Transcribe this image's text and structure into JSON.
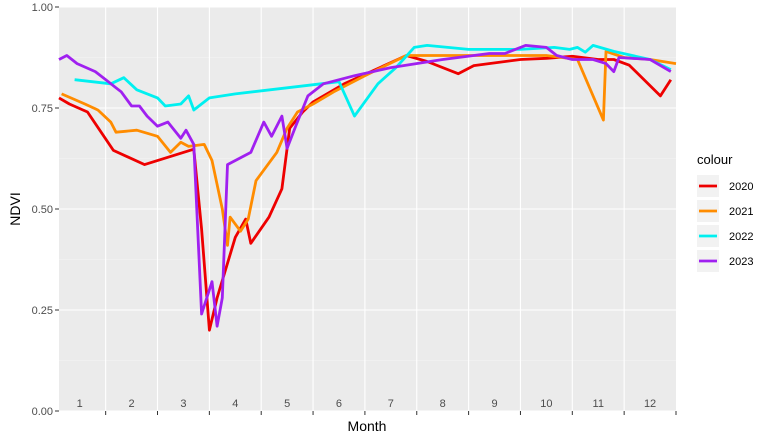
{
  "chart_data": {
    "type": "line",
    "xlabel": "Month",
    "ylabel": "NDVI",
    "ylim": [
      0,
      1
    ],
    "xlim": [
      0.6,
      12.5
    ],
    "yticks": [
      0.0,
      0.25,
      0.5,
      0.75,
      1.0
    ],
    "ytick_labels": [
      "0.00",
      "0.25",
      "0.50",
      "0.75",
      "1.00"
    ],
    "months": [
      "1",
      "2",
      "3",
      "4",
      "5",
      "6",
      "7",
      "8",
      "9",
      "10",
      "11",
      "12"
    ],
    "grid": true,
    "legend_title": "colour",
    "legend_position": "right",
    "series": [
      {
        "name": "2020",
        "color": "#ee0000",
        "points": [
          [
            0.6,
            0.775
          ],
          [
            0.8,
            0.76
          ],
          [
            1.15,
            0.74
          ],
          [
            1.65,
            0.645
          ],
          [
            2.25,
            0.61
          ],
          [
            3.2,
            0.648
          ],
          [
            3.35,
            0.45
          ],
          [
            3.5,
            0.2
          ],
          [
            3.65,
            0.28
          ],
          [
            4.0,
            0.43
          ],
          [
            4.2,
            0.475
          ],
          [
            4.3,
            0.415
          ],
          [
            4.65,
            0.48
          ],
          [
            4.9,
            0.55
          ],
          [
            5.05,
            0.7
          ],
          [
            5.3,
            0.74
          ],
          [
            5.5,
            0.765
          ],
          [
            6.1,
            0.81
          ],
          [
            7.3,
            0.88
          ],
          [
            7.7,
            0.865
          ],
          [
            8.3,
            0.835
          ],
          [
            8.6,
            0.855
          ],
          [
            9.5,
            0.87
          ],
          [
            10.0,
            0.873
          ],
          [
            10.5,
            0.878
          ],
          [
            11.0,
            0.87
          ],
          [
            11.3,
            0.87
          ],
          [
            11.6,
            0.856
          ],
          [
            12.2,
            0.78
          ],
          [
            12.4,
            0.82
          ]
        ]
      },
      {
        "name": "2021",
        "color": "#ff8c00",
        "points": [
          [
            0.65,
            0.785
          ],
          [
            1.1,
            0.76
          ],
          [
            1.35,
            0.745
          ],
          [
            1.6,
            0.715
          ],
          [
            1.7,
            0.69
          ],
          [
            2.1,
            0.695
          ],
          [
            2.5,
            0.68
          ],
          [
            2.75,
            0.64
          ],
          [
            2.95,
            0.665
          ],
          [
            3.1,
            0.655
          ],
          [
            3.4,
            0.66
          ],
          [
            3.55,
            0.62
          ],
          [
            3.75,
            0.5
          ],
          [
            3.85,
            0.41
          ],
          [
            3.9,
            0.48
          ],
          [
            4.1,
            0.445
          ],
          [
            4.25,
            0.475
          ],
          [
            4.4,
            0.57
          ],
          [
            4.8,
            0.64
          ],
          [
            5.0,
            0.7
          ],
          [
            5.2,
            0.74
          ],
          [
            5.5,
            0.76
          ],
          [
            5.9,
            0.79
          ],
          [
            6.5,
            0.83
          ],
          [
            7.3,
            0.88
          ],
          [
            8.2,
            0.88
          ],
          [
            9.0,
            0.88
          ],
          [
            10.0,
            0.88
          ],
          [
            10.6,
            0.87
          ],
          [
            11.1,
            0.72
          ],
          [
            11.15,
            0.89
          ],
          [
            11.5,
            0.875
          ],
          [
            12.0,
            0.87
          ],
          [
            12.5,
            0.86
          ]
        ]
      },
      {
        "name": "2022",
        "color": "#00f0f0",
        "points": [
          [
            0.9,
            0.82
          ],
          [
            1.6,
            0.81
          ],
          [
            1.85,
            0.825
          ],
          [
            2.1,
            0.795
          ],
          [
            2.5,
            0.775
          ],
          [
            2.65,
            0.755
          ],
          [
            2.95,
            0.76
          ],
          [
            3.1,
            0.78
          ],
          [
            3.2,
            0.745
          ],
          [
            3.5,
            0.775
          ],
          [
            4.0,
            0.785
          ],
          [
            5.0,
            0.8
          ],
          [
            6.0,
            0.815
          ],
          [
            6.3,
            0.73
          ],
          [
            6.75,
            0.81
          ],
          [
            7.1,
            0.85
          ],
          [
            7.45,
            0.9
          ],
          [
            7.7,
            0.905
          ],
          [
            8.5,
            0.895
          ],
          [
            9.5,
            0.895
          ],
          [
            10.15,
            0.9
          ],
          [
            10.45,
            0.895
          ],
          [
            10.6,
            0.9
          ],
          [
            10.75,
            0.888
          ],
          [
            10.9,
            0.905
          ],
          [
            11.3,
            0.89
          ],
          [
            12.0,
            0.87
          ],
          [
            12.4,
            0.845
          ]
        ]
      },
      {
        "name": "2023",
        "color": "#a020f0",
        "points": [
          [
            0.6,
            0.87
          ],
          [
            0.75,
            0.88
          ],
          [
            0.95,
            0.86
          ],
          [
            1.3,
            0.84
          ],
          [
            1.55,
            0.815
          ],
          [
            1.7,
            0.8
          ],
          [
            1.8,
            0.79
          ],
          [
            2.0,
            0.755
          ],
          [
            2.15,
            0.755
          ],
          [
            2.3,
            0.73
          ],
          [
            2.5,
            0.705
          ],
          [
            2.7,
            0.715
          ],
          [
            2.95,
            0.675
          ],
          [
            3.05,
            0.695
          ],
          [
            3.2,
            0.66
          ],
          [
            3.35,
            0.24
          ],
          [
            3.55,
            0.32
          ],
          [
            3.65,
            0.21
          ],
          [
            3.75,
            0.28
          ],
          [
            3.85,
            0.61
          ],
          [
            4.3,
            0.64
          ],
          [
            4.55,
            0.715
          ],
          [
            4.7,
            0.68
          ],
          [
            4.9,
            0.73
          ],
          [
            5.0,
            0.65
          ],
          [
            5.15,
            0.7
          ],
          [
            5.4,
            0.78
          ],
          [
            5.7,
            0.81
          ],
          [
            6.3,
            0.83
          ],
          [
            7.0,
            0.85
          ],
          [
            8.0,
            0.87
          ],
          [
            8.9,
            0.885
          ],
          [
            9.2,
            0.885
          ],
          [
            9.6,
            0.905
          ],
          [
            10.0,
            0.9
          ],
          [
            10.2,
            0.88
          ],
          [
            10.5,
            0.87
          ],
          [
            10.9,
            0.87
          ],
          [
            11.15,
            0.86
          ],
          [
            11.3,
            0.84
          ],
          [
            11.4,
            0.875
          ],
          [
            12.0,
            0.87
          ],
          [
            12.4,
            0.84
          ]
        ]
      }
    ]
  }
}
